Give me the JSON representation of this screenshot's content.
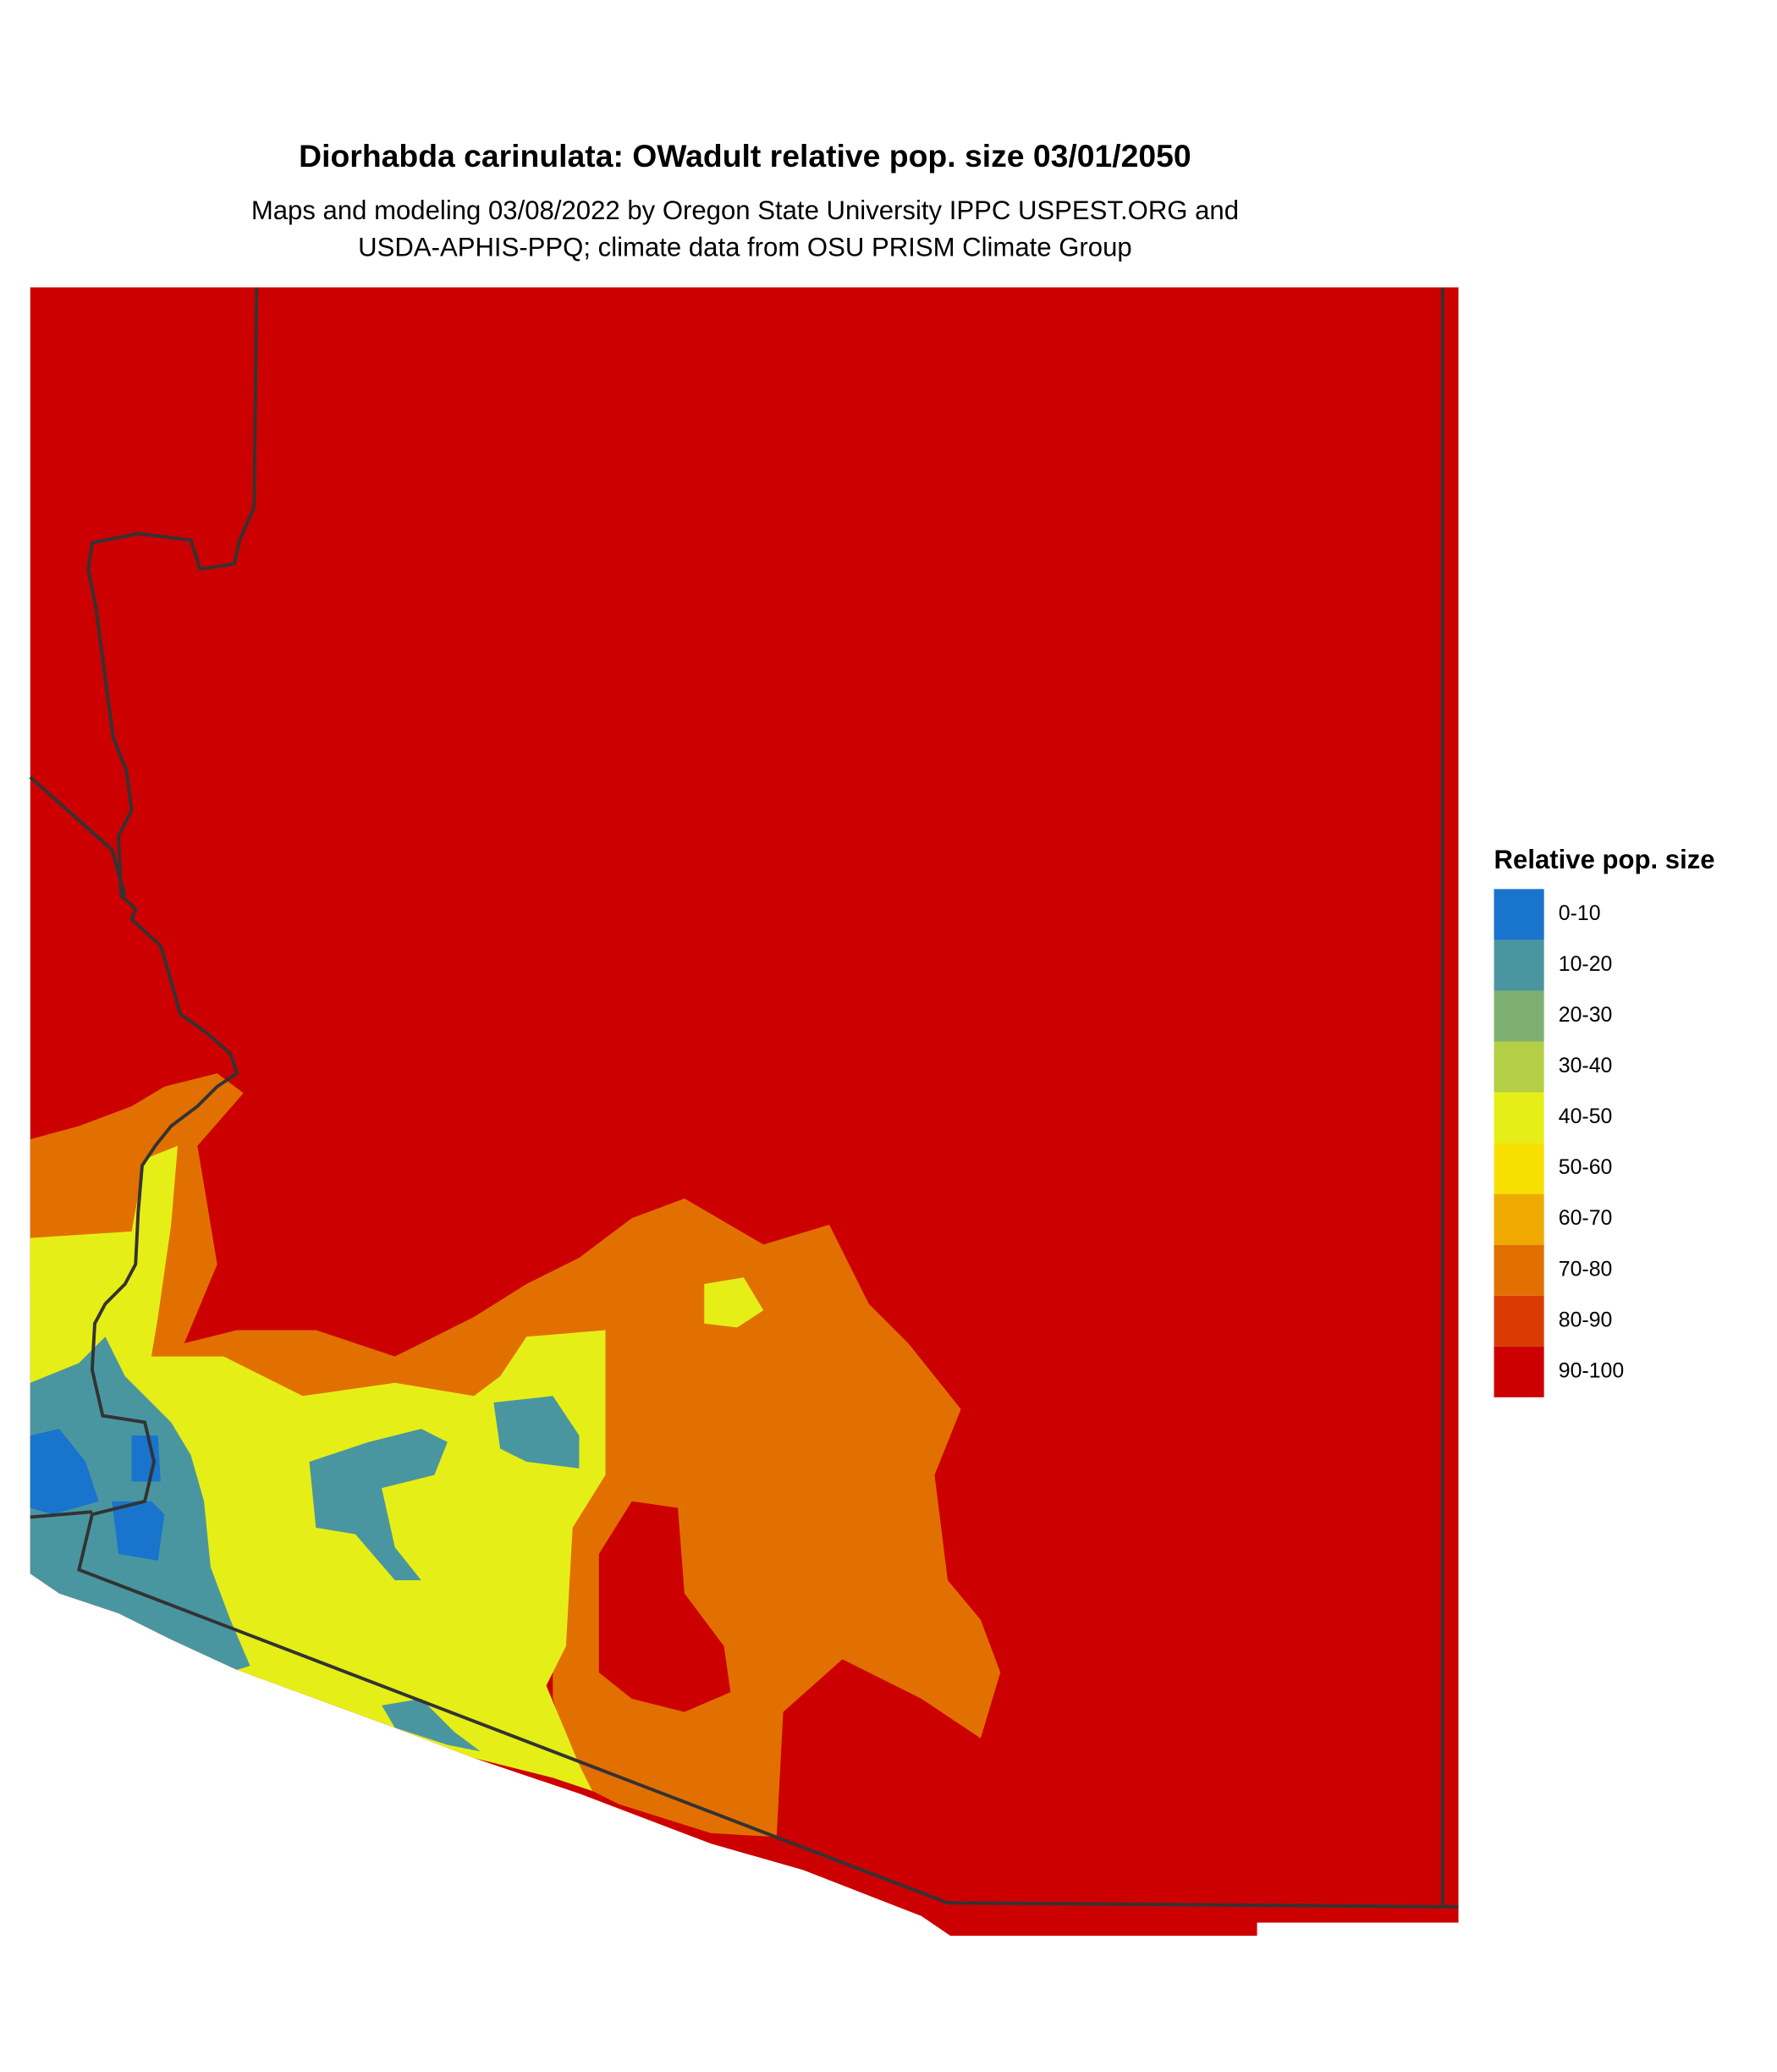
{
  "header": {
    "title": "Diorhabda carinulata: OWadult relative pop. size 03/01/2050",
    "subtitle": [
      "Maps and modeling 03/08/2022 by Oregon State University IPPC USPEST.ORG and",
      "USDA-APHIS-PPQ; climate data from OSU PRISM Climate Group"
    ]
  },
  "legend": {
    "title": "Relative pop. size",
    "items": [
      {
        "label": "0-10",
        "color": "#1874cd"
      },
      {
        "label": "10-20",
        "color": "#4a96a0"
      },
      {
        "label": "20-30",
        "color": "#7fb073"
      },
      {
        "label": "30-40",
        "color": "#b4cf45"
      },
      {
        "label": "40-50",
        "color": "#e6ee17"
      },
      {
        "label": "50-60",
        "color": "#f7e000"
      },
      {
        "label": "60-70",
        "color": "#eeaa00"
      },
      {
        "label": "70-80",
        "color": "#e27000"
      },
      {
        "label": "80-90",
        "color": "#d93b00"
      },
      {
        "label": "90-100",
        "color": "#cc0000"
      }
    ]
  }
}
